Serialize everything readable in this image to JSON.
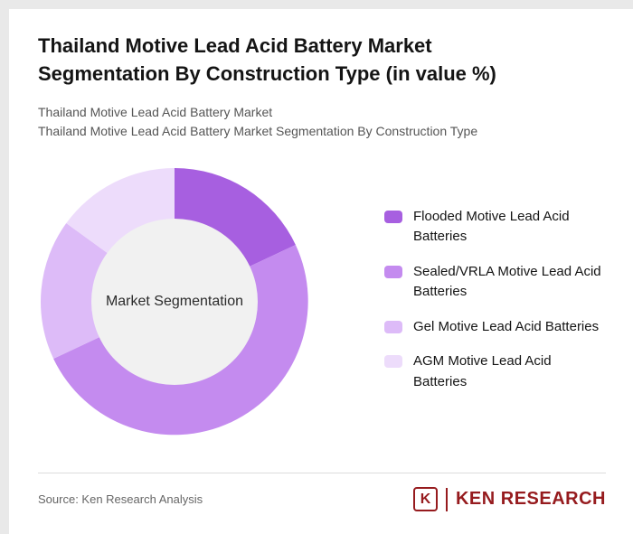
{
  "header": {
    "title": "Thailand Motive Lead Acid Battery Market Segmentation By Construction Type (in value %)",
    "subtitle1": "Thailand Motive Lead Acid Battery Market",
    "subtitle2": "Thailand Motive Lead Acid Battery Market Segmentation By Construction Type"
  },
  "chart_data": {
    "type": "pie",
    "donut": true,
    "title": "Thailand Motive Lead Acid Battery Market Segmentation By Construction Type (in value %)",
    "categories": [
      "Flooded Motive Lead Acid Batteries",
      "Sealed/VRLA Motive Lead Acid Batteries",
      "Gel Motive Lead Acid Batteries",
      "AGM Motive Lead Acid Batteries"
    ],
    "values": [
      18,
      50,
      17,
      15
    ],
    "unit": "value %",
    "colors": [
      "#a75fe0",
      "#c48bef",
      "#ddbbf8",
      "#eddcfb"
    ],
    "center_label": "Market Segmentation",
    "center_color": "#f1f1f1",
    "legend_position": "right",
    "start_angle_deg": 0,
    "direction": "clockwise"
  },
  "footer": {
    "source": "Source: Ken Research Analysis",
    "logo_letter": "K",
    "logo_text": "KEN RESEARCH",
    "logo_color": "#961b1e"
  }
}
